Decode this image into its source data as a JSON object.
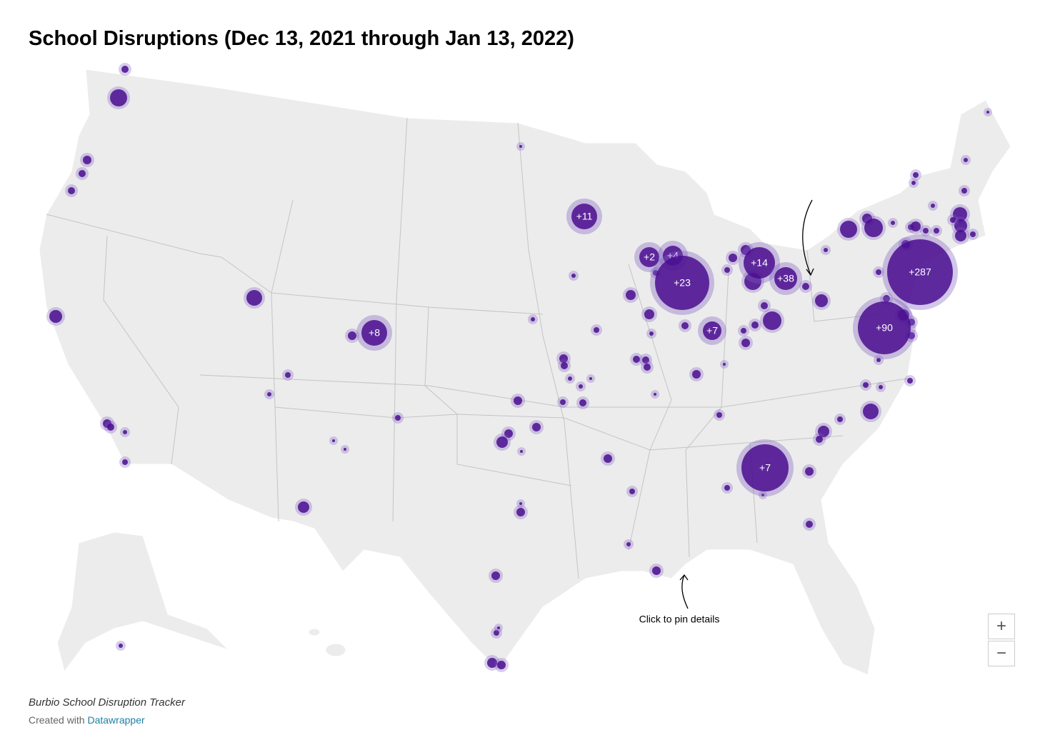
{
  "header": {
    "title": "School Disruptions (Dec 13, 2021 through Jan 13, 2022)"
  },
  "map": {
    "bubble_labels": [
      "+11",
      "+2",
      "+4",
      "+23",
      "+14",
      "+38",
      "+8",
      "+7",
      "+7",
      "+287",
      "+90"
    ],
    "annotation": "Click to pin details",
    "zoom_in": "+",
    "zoom_out": "−"
  },
  "footer": {
    "source": "Burbio School Disruption Tracker",
    "credit_prefix": "Created with",
    "credit_link": "Datawrapper"
  }
}
